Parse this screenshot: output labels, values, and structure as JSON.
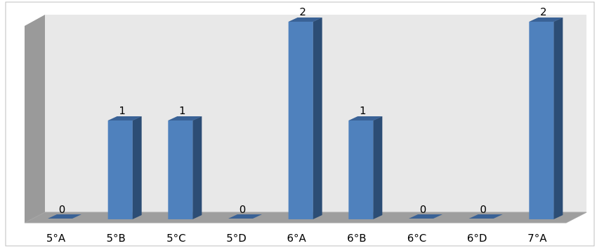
{
  "chart_data": {
    "type": "bar",
    "style": "3d-column",
    "categories": [
      "5°A",
      "5°B",
      "5°C",
      "5°D",
      "6°A",
      "6°B",
      "6°C",
      "6°D",
      "7°A"
    ],
    "values": [
      0,
      1,
      1,
      0,
      2,
      1,
      0,
      0,
      2
    ],
    "ylim": [
      0,
      2
    ],
    "grid": false,
    "legend": "none",
    "data_labels": true
  },
  "colors": {
    "bar_front": "#4f81bd",
    "bar_side": "#2c4d75",
    "bar_top": "#3a6296",
    "back_wall": "#e8e8e8",
    "side_wall": "#9a9a9a",
    "floor": "#9e9e9e",
    "floor_edge": "#a6a6a6"
  }
}
